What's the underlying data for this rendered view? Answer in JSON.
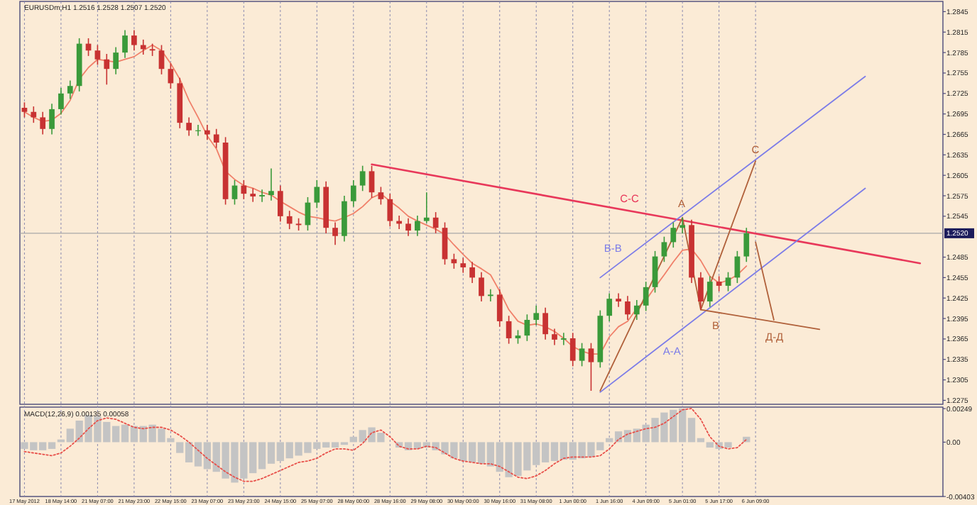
{
  "chart_data": {
    "type": "candlestick",
    "title": "EURUSDm,H1 1.2516 1.2528 1.2507 1.2520",
    "categories": [
      "17 May 2012",
      null,
      null,
      null,
      "18 May 14:00",
      null,
      null,
      null,
      "21 May 07:00",
      null,
      null,
      null,
      "21 May 23:00",
      null,
      null,
      null,
      "22 May 15:00",
      null,
      null,
      null,
      "23 May 07:00",
      null,
      null,
      null,
      "23 May 23:00",
      null,
      null,
      null,
      "24 May 15:00",
      null,
      null,
      null,
      "25 May 07:00",
      null,
      null,
      null,
      "28 May 00:00",
      null,
      null,
      null,
      "28 May 16:00",
      null,
      null,
      null,
      "29 May 08:00",
      null,
      null,
      null,
      "30 May 00:00",
      null,
      null,
      null,
      "30 May 16:00",
      null,
      null,
      null,
      "31 May 08:00",
      null,
      null,
      null,
      "1 Jun 00:00",
      null,
      null,
      null,
      "1 Jun 16:00",
      null,
      null,
      null,
      "4 Jun 09:00",
      null,
      null,
      null,
      "5 Jun 01:00",
      null,
      null,
      null,
      "5 Jun 17:00",
      null,
      null,
      null,
      "6 Jun 09:00",
      null,
      null,
      null,
      null,
      null,
      null,
      null,
      null,
      null,
      null,
      null,
      null,
      null,
      null,
      null,
      null,
      null,
      null,
      null,
      null
    ],
    "ohlc": [
      [
        1.2704,
        1.2712,
        1.269,
        1.2698
      ],
      [
        1.2698,
        1.2706,
        1.2682,
        1.269
      ],
      [
        1.269,
        1.2698,
        1.2665,
        1.2673
      ],
      [
        1.2673,
        1.271,
        1.2665,
        1.2702
      ],
      [
        1.2702,
        1.2733,
        1.2694,
        1.2725
      ],
      [
        1.2725,
        1.2744,
        1.2717,
        1.2736
      ],
      [
        1.2736,
        1.2806,
        1.2728,
        1.2798
      ],
      [
        1.2798,
        1.2806,
        1.278,
        1.2788
      ],
      [
        1.2788,
        1.2796,
        1.2767,
        1.2775
      ],
      [
        1.2775,
        1.2783,
        1.2738,
        1.2761
      ],
      [
        1.2761,
        1.2793,
        1.2753,
        1.2785
      ],
      [
        1.2785,
        1.2818,
        1.2777,
        1.281
      ],
      [
        1.281,
        1.2818,
        1.2788,
        1.2796
      ],
      [
        1.2796,
        1.2804,
        1.2782,
        1.279
      ],
      [
        1.279,
        1.2798,
        1.278,
        1.2788
      ],
      [
        1.2788,
        1.2796,
        1.2753,
        1.2761
      ],
      [
        1.2761,
        1.2769,
        1.2732,
        1.274
      ],
      [
        1.274,
        1.2748,
        1.2674,
        1.2682
      ],
      [
        1.2682,
        1.269,
        1.2663,
        1.2671
      ],
      [
        1.2671,
        1.2679,
        1.2663,
        1.2671
      ],
      [
        1.2671,
        1.2679,
        1.2657,
        1.2665
      ],
      [
        1.2665,
        1.2673,
        1.2645,
        1.2653
      ],
      [
        1.2653,
        1.2661,
        1.2562,
        1.257
      ],
      [
        1.257,
        1.2598,
        1.2562,
        1.259
      ],
      [
        1.259,
        1.2598,
        1.257,
        1.2578
      ],
      [
        1.2578,
        1.2586,
        1.2566,
        1.2574
      ],
      [
        1.2574,
        1.2584,
        1.2566,
        1.2576
      ],
      [
        1.2576,
        1.2615,
        1.2568,
        1.2582
      ],
      [
        1.2582,
        1.259,
        1.2537,
        1.2545
      ],
      [
        1.2545,
        1.2553,
        1.2526,
        1.2534
      ],
      [
        1.2534,
        1.2542,
        1.2524,
        1.2532
      ],
      [
        1.2532,
        1.2573,
        1.2524,
        1.2565
      ],
      [
        1.2565,
        1.2598,
        1.2557,
        1.2588
      ],
      [
        1.2588,
        1.2596,
        1.252,
        1.2528
      ],
      [
        1.2528,
        1.2536,
        1.2503,
        1.2516
      ],
      [
        1.2516,
        1.2575,
        1.2508,
        1.2567
      ],
      [
        1.2567,
        1.2598,
        1.2559,
        1.259
      ],
      [
        1.259,
        1.2619,
        1.2582,
        1.2611
      ],
      [
        1.2611,
        1.2619,
        1.2572,
        1.258
      ],
      [
        1.258,
        1.2588,
        1.2562,
        1.257
      ],
      [
        1.257,
        1.2578,
        1.253,
        1.2538
      ],
      [
        1.2538,
        1.2546,
        1.2526,
        1.2534
      ],
      [
        1.2534,
        1.2542,
        1.2516,
        1.2524
      ],
      [
        1.2524,
        1.2546,
        1.2516,
        1.2538
      ],
      [
        1.2538,
        1.258,
        1.2535,
        1.2543
      ],
      [
        1.2543,
        1.2551,
        1.252,
        1.2528
      ],
      [
        1.2528,
        1.2536,
        1.2474,
        1.2482
      ],
      [
        1.2482,
        1.249,
        1.2468,
        1.2476
      ],
      [
        1.2476,
        1.2484,
        1.2462,
        1.247
      ],
      [
        1.247,
        1.2478,
        1.2447,
        1.2455
      ],
      [
        1.2455,
        1.2463,
        1.242,
        1.2428
      ],
      [
        1.2428,
        1.2438,
        1.242,
        1.243
      ],
      [
        1.243,
        1.2438,
        1.2383,
        1.2391
      ],
      [
        1.2391,
        1.2399,
        1.2358,
        1.2366
      ],
      [
        1.2366,
        1.2378,
        1.2358,
        1.237
      ],
      [
        1.237,
        1.2401,
        1.2362,
        1.2393
      ],
      [
        1.2393,
        1.2414,
        1.2385,
        1.2403
      ],
      [
        1.2403,
        1.2411,
        1.2364,
        1.2372
      ],
      [
        1.2372,
        1.238,
        1.2356,
        1.2364
      ],
      [
        1.2364,
        1.2374,
        1.2356,
        1.2366
      ],
      [
        1.2366,
        1.2374,
        1.2325,
        1.2333
      ],
      [
        1.2333,
        1.2359,
        1.2325,
        1.2351
      ],
      [
        1.2351,
        1.2359,
        1.2289,
        1.2331
      ],
      [
        1.2331,
        1.2407,
        1.2323,
        1.2399
      ],
      [
        1.2399,
        1.2432,
        1.2391,
        1.2424
      ],
      [
        1.2424,
        1.2432,
        1.2412,
        1.242
      ],
      [
        1.242,
        1.2428,
        1.2393,
        1.2401
      ],
      [
        1.2401,
        1.2422,
        1.2393,
        1.2414
      ],
      [
        1.2414,
        1.2449,
        1.2406,
        1.2441
      ],
      [
        1.2441,
        1.2494,
        1.2433,
        1.2486
      ],
      [
        1.2486,
        1.2515,
        1.2478,
        1.2507
      ],
      [
        1.2507,
        1.2536,
        1.2499,
        1.2528
      ],
      [
        1.2528,
        1.2543,
        1.252,
        1.2532
      ],
      [
        1.2532,
        1.254,
        1.2447,
        1.2455
      ],
      [
        1.2455,
        1.2463,
        1.2408,
        1.242
      ],
      [
        1.242,
        1.2457,
        1.2412,
        1.2449
      ],
      [
        1.2449,
        1.2457,
        1.2435,
        1.2443
      ],
      [
        1.2443,
        1.2463,
        1.2435,
        1.2455
      ],
      [
        1.2455,
        1.2494,
        1.2447,
        1.2486
      ],
      [
        1.2486,
        1.2528,
        1.2478,
        1.252
      ],
      null,
      null,
      null,
      null,
      null,
      null,
      null,
      null,
      null,
      null,
      null,
      null,
      null,
      null,
      null,
      null,
      null,
      null,
      null,
      null,
      null
    ],
    "series": [
      {
        "type": "line",
        "color": "#f0806a",
        "values": [
          1.2698,
          1.269,
          1.2684,
          1.2686,
          1.2696,
          1.2715,
          1.2746,
          1.2763,
          1.2775,
          1.2773,
          1.2771,
          1.2775,
          1.2779,
          1.2788,
          1.2796,
          1.2788,
          1.2769,
          1.2746,
          1.2715,
          1.269,
          1.2663,
          1.2644,
          1.2611,
          1.2599,
          1.259,
          1.2586,
          1.258,
          1.2576,
          1.2567,
          1.2559,
          1.2551,
          1.2545,
          1.2543,
          1.254,
          1.2538,
          1.2543,
          1.2549,
          1.2559,
          1.2572,
          1.2578,
          1.2567,
          1.2557,
          1.2545,
          1.2538,
          1.2532,
          1.2526,
          1.2518,
          1.2503,
          1.2489,
          1.2476,
          1.2468,
          1.2459,
          1.2435,
          1.2408,
          1.2391,
          1.2385,
          1.2387,
          1.2383,
          1.2376,
          1.2366,
          1.2354,
          1.2347,
          1.2343,
          1.2343,
          1.2368,
          1.2383,
          1.2391,
          1.241,
          1.2422,
          1.2441,
          1.2459,
          1.2478,
          1.2495,
          1.2497,
          1.248,
          1.2457,
          1.2447,
          1.2451,
          1.2459,
          1.2472,
          null,
          null,
          null,
          null,
          null,
          null,
          null,
          null,
          null,
          null,
          null,
          null,
          null,
          null,
          null,
          null,
          null,
          null,
          null,
          null,
          null
        ]
      },
      {
        "type": "line",
        "name": "C-C",
        "color": "#e8385a",
        "values": [
          null,
          null,
          null,
          null,
          null,
          null,
          null,
          null,
          null,
          null,
          null,
          null,
          null,
          null,
          null,
          null,
          null,
          null,
          null,
          null,
          null,
          null,
          null,
          null,
          null,
          null,
          null,
          null,
          null,
          null,
          null,
          null,
          null,
          null,
          null,
          null,
          null,
          null,
          1.2621,
          null,
          null,
          null,
          null,
          null,
          null,
          null,
          null,
          null,
          null,
          null,
          null,
          null,
          null,
          null,
          null,
          null,
          null,
          null,
          null,
          null,
          null,
          null,
          null,
          null,
          null,
          null,
          null,
          null,
          null,
          null,
          null,
          null,
          null,
          null,
          null,
          null,
          null,
          null,
          null,
          null,
          null,
          null,
          null,
          null,
          null,
          null,
          null,
          null,
          null,
          null,
          null,
          null,
          null,
          null,
          null,
          null,
          null,
          null,
          1.2476,
          null,
          null
        ]
      },
      {
        "type": "line",
        "name": "B-B",
        "color": "#7c7ce8",
        "values": [
          null,
          null,
          null,
          null,
          null,
          null,
          null,
          null,
          null,
          null,
          null,
          null,
          null,
          null,
          null,
          null,
          null,
          null,
          null,
          null,
          null,
          null,
          null,
          null,
          null,
          null,
          null,
          null,
          null,
          null,
          null,
          null,
          null,
          null,
          null,
          null,
          null,
          null,
          null,
          null,
          null,
          null,
          null,
          null,
          null,
          null,
          null,
          null,
          null,
          null,
          null,
          null,
          null,
          null,
          null,
          null,
          null,
          null,
          null,
          null,
          null,
          null,
          null,
          1.2455,
          null,
          null,
          null,
          null,
          null,
          null,
          null,
          null,
          null,
          null,
          null,
          null,
          null,
          null,
          null,
          null,
          null,
          null,
          null,
          null,
          null,
          null,
          null,
          null,
          null,
          null,
          null,
          null,
          1.275,
          null,
          null,
          null,
          null,
          null,
          null,
          null,
          null
        ]
      },
      {
        "type": "line",
        "name": "A-A",
        "color": "#7c7ce8",
        "values": [
          null,
          null,
          null,
          null,
          null,
          null,
          null,
          null,
          null,
          null,
          null,
          null,
          null,
          null,
          null,
          null,
          null,
          null,
          null,
          null,
          null,
          null,
          null,
          null,
          null,
          null,
          null,
          null,
          null,
          null,
          null,
          null,
          null,
          null,
          null,
          null,
          null,
          null,
          null,
          null,
          null,
          null,
          null,
          null,
          null,
          null,
          null,
          null,
          null,
          null,
          null,
          null,
          null,
          null,
          null,
          null,
          null,
          null,
          null,
          null,
          null,
          null,
          null,
          1.2287,
          null,
          null,
          null,
          null,
          null,
          null,
          null,
          null,
          null,
          null,
          null,
          null,
          null,
          null,
          null,
          null,
          null,
          null,
          null,
          null,
          null,
          null,
          null,
          null,
          null,
          null,
          null,
          null,
          1.2586,
          null,
          null,
          null,
          null,
          null,
          null,
          null,
          null
        ]
      },
      {
        "type": "line",
        "color": "#b0603a",
        "values": [
          null,
          null,
          null,
          null,
          null,
          null,
          null,
          null,
          null,
          null,
          null,
          null,
          null,
          null,
          null,
          null,
          null,
          null,
          null,
          null,
          null,
          null,
          null,
          null,
          null,
          null,
          null,
          null,
          null,
          null,
          null,
          null,
          null,
          null,
          null,
          null,
          null,
          null,
          null,
          null,
          null,
          null,
          null,
          null,
          null,
          null,
          null,
          null,
          null,
          null,
          null,
          null,
          null,
          null,
          null,
          null,
          null,
          null,
          null,
          null,
          null,
          null,
          null,
          1.2289,
          null,
          null,
          null,
          null,
          null,
          null,
          null,
          null,
          1.2543,
          null,
          1.2408,
          null,
          null,
          null,
          null,
          null,
          1.2626,
          null,
          null,
          null,
          null,
          null,
          null,
          null,
          null,
          null,
          null,
          null,
          null,
          null,
          null,
          null,
          null,
          null,
          null,
          null,
          null
        ]
      },
      {
        "type": "line",
        "name": "Д-Д",
        "color": "#b0603a",
        "values": [
          null,
          null,
          null,
          null,
          null,
          null,
          null,
          null,
          null,
          null,
          null,
          null,
          null,
          null,
          null,
          null,
          null,
          null,
          null,
          null,
          null,
          null,
          null,
          null,
          null,
          null,
          null,
          null,
          null,
          null,
          null,
          null,
          null,
          null,
          null,
          null,
          null,
          null,
          null,
          null,
          null,
          null,
          null,
          null,
          null,
          null,
          null,
          null,
          null,
          null,
          null,
          null,
          null,
          null,
          null,
          null,
          null,
          null,
          null,
          null,
          null,
          null,
          null,
          null,
          null,
          null,
          null,
          null,
          null,
          null,
          null,
          null,
          null,
          null,
          1.2408,
          null,
          null,
          null,
          null,
          null,
          null,
          null,
          null,
          null,
          null,
          null,
          null,
          1.2379,
          null,
          null,
          null,
          null,
          null,
          null,
          null,
          null,
          null,
          null,
          null,
          null,
          null
        ]
      },
      {
        "type": "line",
        "color": "#b0603a",
        "values": [
          null,
          null,
          null,
          null,
          null,
          null,
          null,
          null,
          null,
          null,
          null,
          null,
          null,
          null,
          null,
          null,
          null,
          null,
          null,
          null,
          null,
          null,
          null,
          null,
          null,
          null,
          null,
          null,
          null,
          null,
          null,
          null,
          null,
          null,
          null,
          null,
          null,
          null,
          null,
          null,
          null,
          null,
          null,
          null,
          null,
          null,
          null,
          null,
          null,
          null,
          null,
          null,
          null,
          null,
          null,
          null,
          null,
          null,
          null,
          null,
          null,
          null,
          null,
          null,
          null,
          null,
          null,
          null,
          null,
          null,
          null,
          null,
          null,
          null,
          null,
          null,
          null,
          null,
          null,
          null,
          1.2507,
          null,
          1.2393,
          null,
          null,
          null,
          null,
          null,
          null,
          null,
          null,
          null,
          null,
          null,
          null,
          null,
          null,
          null,
          null,
          null,
          null
        ]
      },
      {
        "type": "bar",
        "axis": "y2",
        "color": "#c4c4c4",
        "values": [
          -0.0005,
          -0.0006,
          -0.0006,
          -0.0005,
          0.0002,
          0.001,
          0.0016,
          0.002,
          0.0019,
          0.0015,
          0.0012,
          0.0013,
          0.0012,
          0.0012,
          0.0013,
          0.001,
          0.0003,
          -0.0008,
          -0.0015,
          -0.0018,
          -0.002,
          -0.0022,
          -0.0027,
          -0.003,
          -0.0027,
          -0.0023,
          -0.002,
          -0.0016,
          -0.0014,
          -0.0012,
          -0.001,
          -0.0008,
          -0.0005,
          -0.0004,
          -0.0004,
          -0.0002,
          0.0004,
          0.0009,
          0.0011,
          0.0007,
          null,
          -0.0004,
          -0.0006,
          -0.0005,
          -0.0004,
          -0.0006,
          -0.0009,
          -0.0012,
          -0.0014,
          -0.0015,
          -0.0016,
          -0.0018,
          -0.0022,
          -0.0026,
          -0.0025,
          -0.0021,
          -0.0017,
          -0.0015,
          -0.0014,
          -0.0013,
          -0.0013,
          -0.0012,
          -0.0011,
          -0.0006,
          0.0003,
          0.0008,
          0.0009,
          0.001,
          0.0013,
          0.0018,
          0.0022,
          0.0024,
          0.0025,
          0.0018,
          0.0003,
          -0.0004,
          -0.0005,
          -0.0004,
          null,
          0.0004,
          null,
          null,
          null,
          null,
          null,
          null,
          null,
          null,
          null,
          null,
          null,
          null,
          null,
          null,
          null,
          null,
          null,
          null,
          null,
          null,
          null
        ]
      },
      {
        "type": "line",
        "axis": "y2",
        "color": "#e8504a",
        "line_style": "dotted",
        "values": [
          -0.0007,
          -0.0008,
          -0.0009,
          -0.001,
          -0.0008,
          -0.0003,
          0.0003,
          0.001,
          0.0016,
          0.0018,
          0.0017,
          0.0014,
          0.0011,
          0.001,
          0.0011,
          0.0011,
          0.0009,
          0.0005,
          0.0,
          -0.0006,
          -0.0012,
          -0.0017,
          -0.0022,
          -0.0026,
          -0.0029,
          -0.0029,
          -0.0027,
          -0.0024,
          -0.0021,
          -0.0018,
          -0.0015,
          -0.0014,
          -0.0012,
          -0.0008,
          -0.0005,
          -0.0005,
          -0.0006,
          -0.0001,
          0.0007,
          0.0009,
          0.0004,
          -0.0003,
          -0.0005,
          -0.0005,
          -0.0003,
          -0.0004,
          -0.0008,
          -0.0012,
          -0.0014,
          -0.0015,
          -0.0016,
          -0.0016,
          -0.0018,
          -0.0022,
          -0.0026,
          -0.0027,
          -0.0025,
          -0.0021,
          -0.0016,
          -0.0012,
          -0.0011,
          -0.0011,
          -0.0011,
          -0.001,
          -0.0005,
          0.0002,
          0.0006,
          0.0008,
          0.001,
          0.0011,
          0.0014,
          0.0019,
          0.0024,
          0.0025,
          0.0017,
          0.0004,
          -0.0003,
          -0.0005,
          -0.0004,
          0.0002,
          null,
          null,
          null,
          null,
          null,
          null,
          null,
          null,
          null,
          null,
          null,
          null,
          null,
          null,
          null,
          null,
          null,
          null,
          null,
          null,
          null
        ]
      }
    ],
    "annotations": [
      "A",
      "B",
      "C",
      "MACD(12,26,9) 0.00135 0.00058"
    ],
    "ylim": [
      1.2134,
      1.286
    ],
    "yticks": [
      1.2275,
      1.2305,
      1.2335,
      1.2365,
      1.2395,
      1.2425,
      1.2455,
      1.2485,
      1.2545,
      1.2575,
      1.2605,
      1.2635,
      1.2665,
      1.2695,
      1.2725,
      1.2755,
      1.2785,
      1.2815,
      1.2845
    ],
    "y2lim": [
      -0.00403,
      0.0327
    ],
    "y2ticks": [
      {
        "value": 0.00249,
        "label": "0.00249"
      },
      {
        "value": 0,
        "label": "0.00"
      },
      {
        "value": -0.00403,
        "label": "-0.00403"
      }
    ],
    "ref_lines": [
      {
        "axis": "y",
        "value": 1.252,
        "label": "1.2520",
        "color": "#a8a8a8"
      }
    ],
    "grid": "x"
  }
}
